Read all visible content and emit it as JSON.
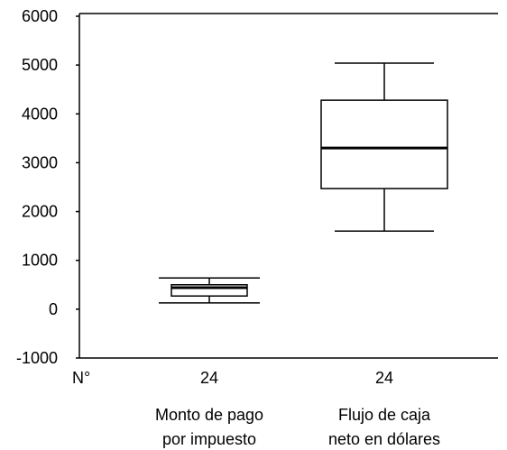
{
  "chart_data": {
    "type": "box",
    "title": "",
    "xlabel": "",
    "ylabel": "",
    "ylim": [
      -1000,
      6000
    ],
    "yticks": [
      -1000,
      0,
      1000,
      2000,
      3000,
      4000,
      5000,
      6000
    ],
    "ytick_labels": [
      "-1000",
      "0",
      "1000",
      "2000",
      "3000",
      "4000",
      "5000",
      "6000"
    ],
    "n_header": "N°",
    "grid": false,
    "categories": [
      {
        "n_label": "24",
        "name_line1": "Monto de pago",
        "name_line2": "por impuesto",
        "min": 130,
        "q1": 270,
        "median": 440,
        "q3": 500,
        "max": 640
      },
      {
        "n_label": "24",
        "name_line1": "Flujo de caja",
        "name_line2": "neto en dólares",
        "min": 1600,
        "q1": 2470,
        "median": 3300,
        "q3": 4280,
        "max": 5040
      }
    ]
  }
}
